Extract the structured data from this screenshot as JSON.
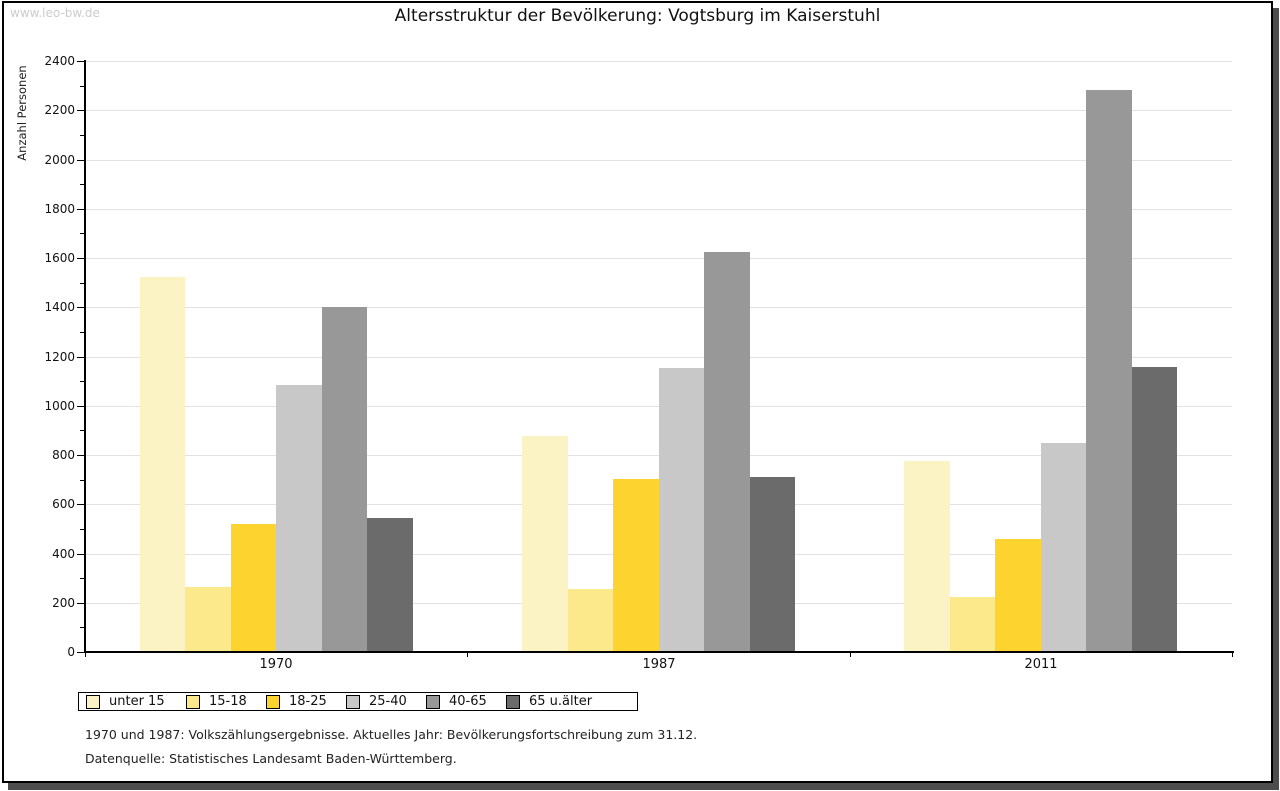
{
  "watermark": "www.leo-bw.de",
  "header": {
    "title": "Altersstruktur der Bevölkerung: Vogtsburg im Kaiserstuhl"
  },
  "footnotes": {
    "line1": "1970 und 1987: Volkszählungsergebnisse. Aktuelles Jahr: Bevölkerungsfortschreibung zum 31.12.",
    "line2": "Datenquelle: Statistisches Landesamt Baden-Württemberg."
  },
  "colors": {
    "grid": "#e2e2e2",
    "axis": "#000000",
    "watermark": "#cccccc",
    "frame_shadow": "#4d4d4d",
    "series": [
      "#fcf3c4",
      "#fce98c",
      "#fdd32f",
      "#c8c8c8",
      "#989898",
      "#6b6b6b"
    ]
  },
  "chart_data": {
    "type": "bar",
    "title": "Altersstruktur der Bevölkerung: Vogtsburg im Kaiserstuhl",
    "xlabel": "",
    "ylabel": "Anzahl Personen",
    "categories": [
      "1970",
      "1987",
      "2011"
    ],
    "series": [
      {
        "name": "unter 15",
        "color": "#fcf3c4",
        "values": [
          1520,
          875,
          770
        ]
      },
      {
        "name": "15-18",
        "color": "#fce98c",
        "values": [
          260,
          250,
          220
        ]
      },
      {
        "name": "18-25",
        "color": "#fdd32f",
        "values": [
          515,
          700,
          455
        ]
      },
      {
        "name": "25-40",
        "color": "#c8c8c8",
        "values": [
          1080,
          1150,
          845
        ]
      },
      {
        "name": "40-65",
        "color": "#989898",
        "values": [
          1395,
          1620,
          2280
        ]
      },
      {
        "name": "65 u.älter",
        "color": "#6b6b6b",
        "values": [
          540,
          705,
          1155
        ]
      }
    ],
    "ylim": [
      0,
      2400
    ],
    "ytick_step": 200,
    "yminor_step": 100,
    "grid": true,
    "legend_position": "bottom"
  }
}
